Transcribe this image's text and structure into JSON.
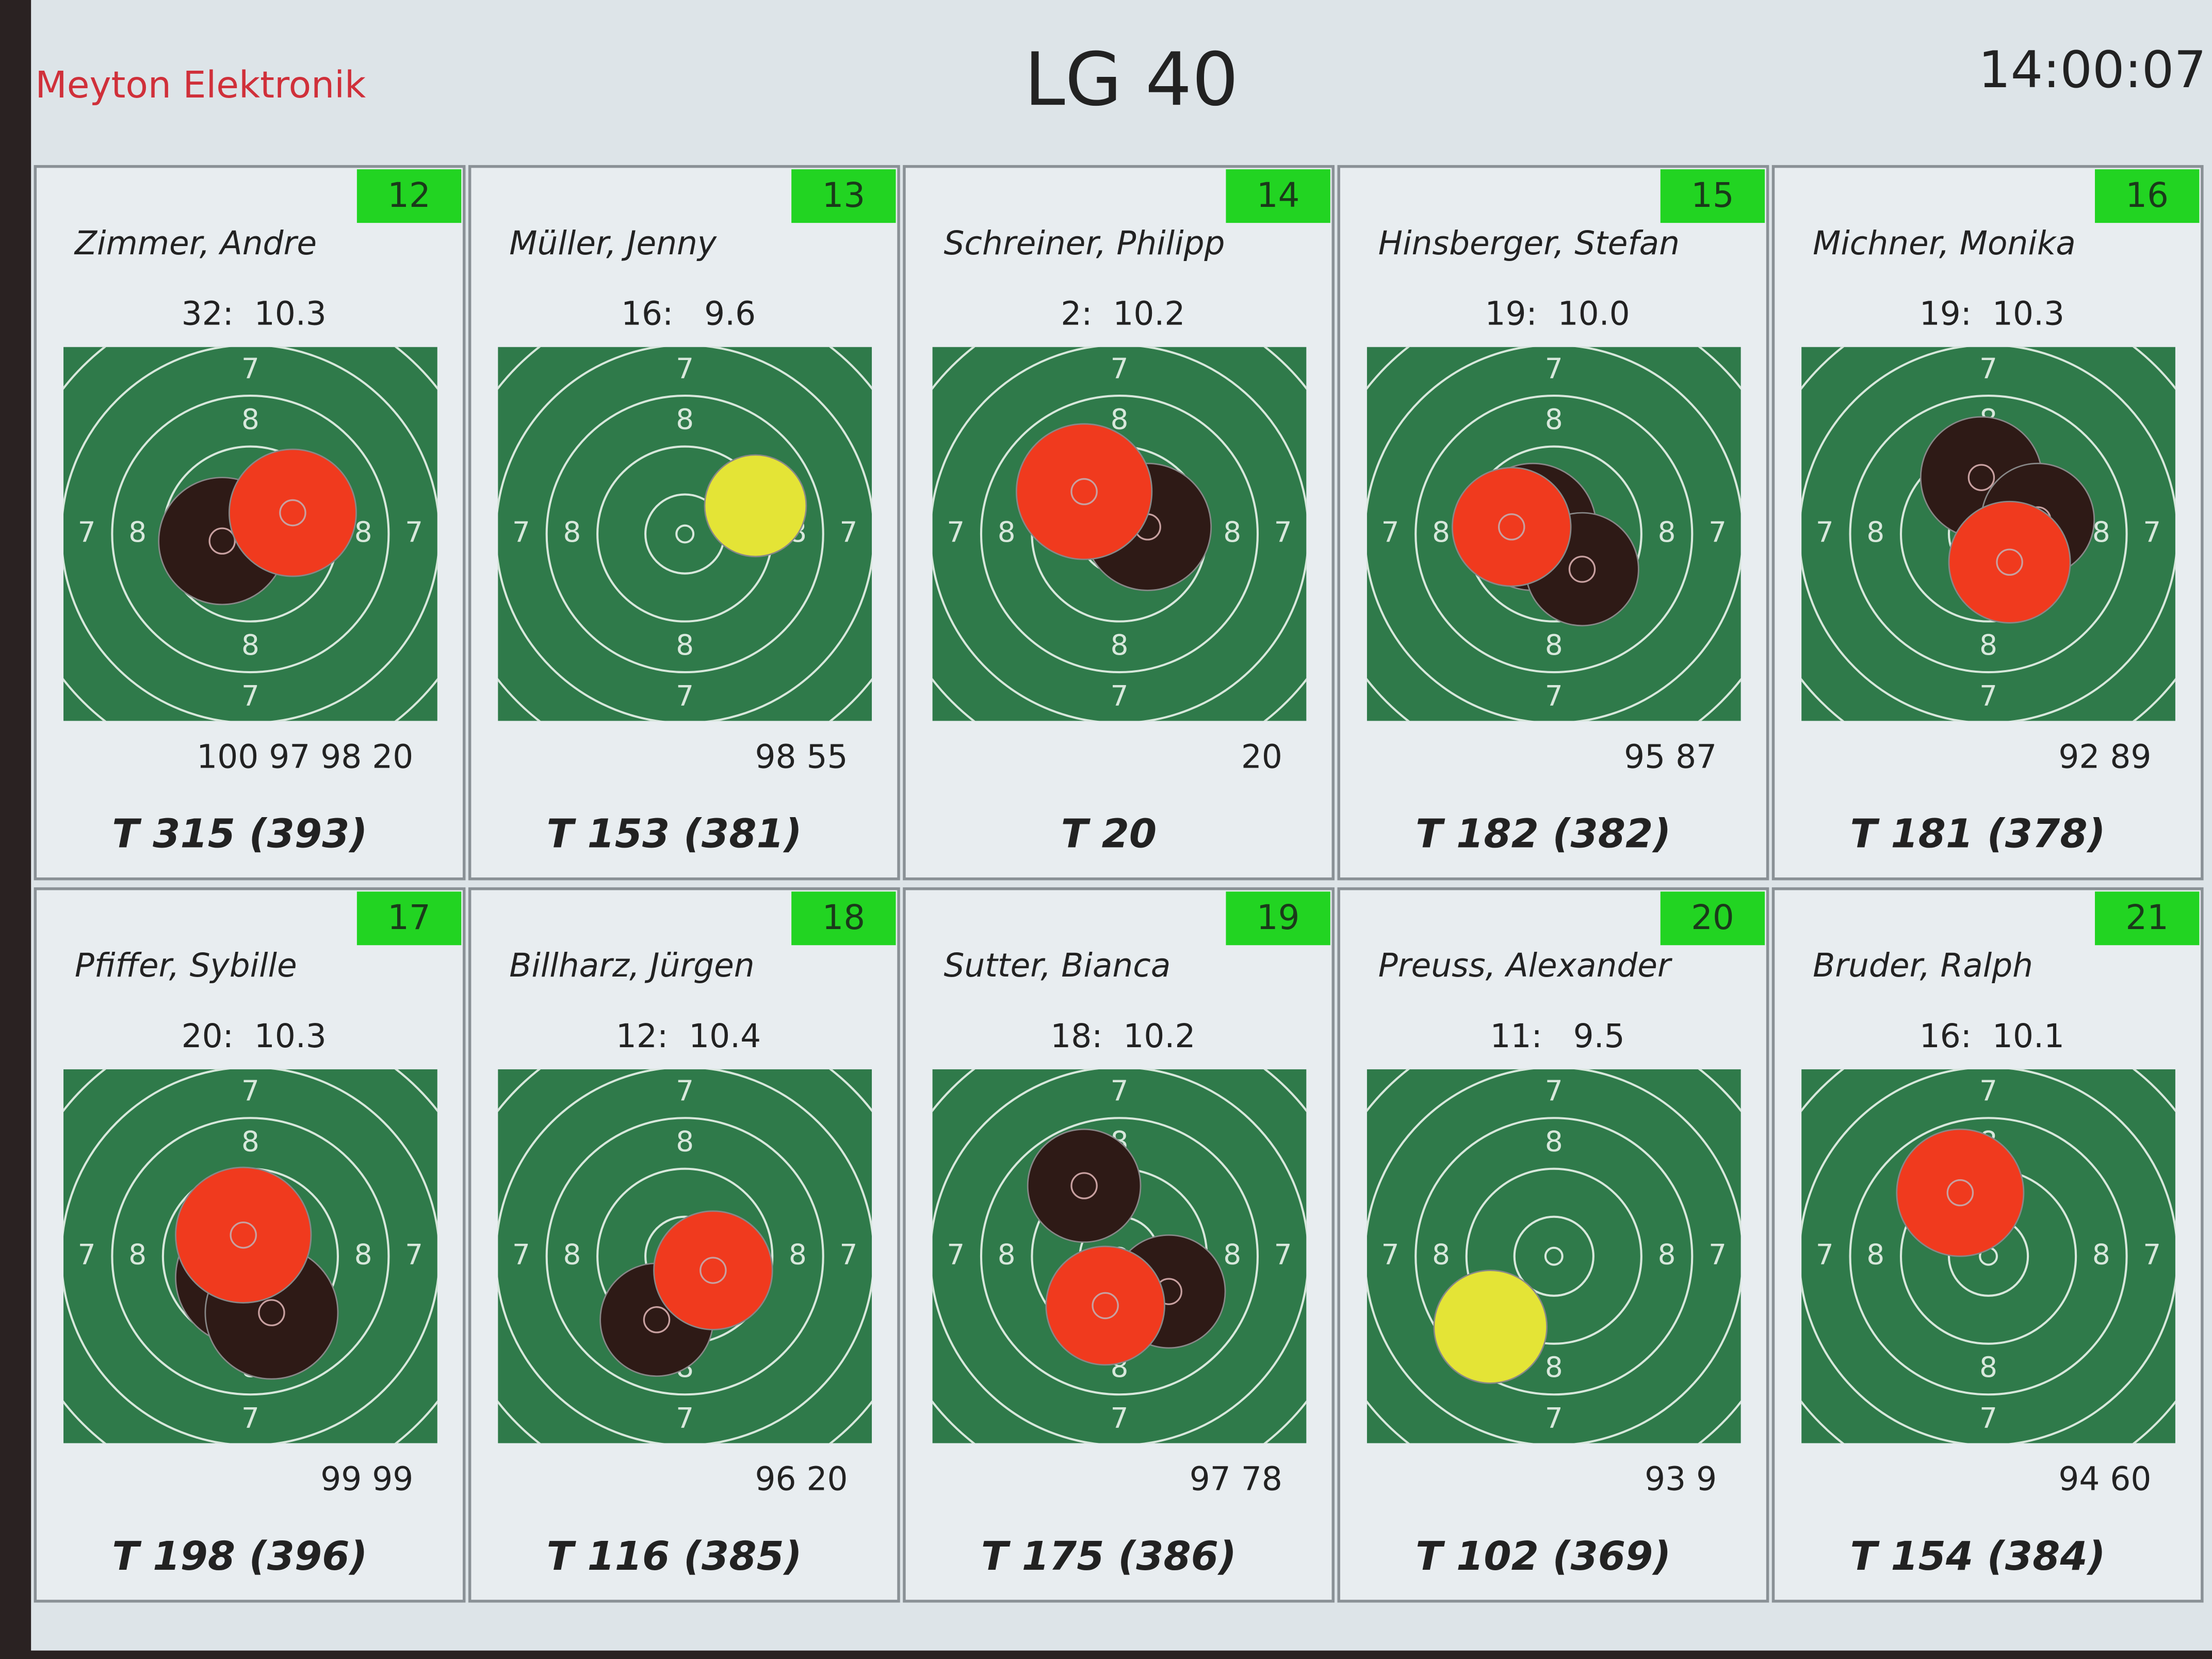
{
  "header": {
    "brand": "Meyton Elektronik",
    "title": "LG 40",
    "time": "14:00:07"
  },
  "ring_labels": [
    "7",
    "8"
  ],
  "lanes": [
    {
      "lane": "12",
      "name": "Zimmer, Andre",
      "last_shot": "32:  10.3",
      "series": [
        100,
        97,
        98,
        20
      ],
      "total": "T 315 (393)"
    },
    {
      "lane": "13",
      "name": "Müller, Jenny",
      "last_shot": "16:   9.6",
      "series": [
        98,
        55
      ],
      "total": "T 153 (381)"
    },
    {
      "lane": "14",
      "name": "Schreiner, Philipp",
      "last_shot": "2:  10.2",
      "series": [
        20
      ],
      "total": "T 20"
    },
    {
      "lane": "15",
      "name": "Hinsberger, Stefan",
      "last_shot": "19:  10.0",
      "series": [
        95,
        87
      ],
      "total": "T 182 (382)"
    },
    {
      "lane": "16",
      "name": "Michner, Monika",
      "last_shot": "19:  10.3",
      "series": [
        92,
        89
      ],
      "total": "T 181 (378)"
    },
    {
      "lane": "17",
      "name": "Pfiffer, Sybille",
      "last_shot": "20:  10.3",
      "series": [
        99,
        99
      ],
      "total": "T 198 (396)"
    },
    {
      "lane": "18",
      "name": "Billharz, Jürgen",
      "last_shot": "12:  10.4",
      "series": [
        96,
        20
      ],
      "total": "T 116 (385)"
    },
    {
      "lane": "19",
      "name": "Sutter, Bianca",
      "last_shot": "18:  10.2",
      "series": [
        97,
        78
      ],
      "total": "T 175 (386)"
    },
    {
      "lane": "20",
      "name": "Preuss, Alexander",
      "last_shot": "11:   9.5",
      "series": [
        93,
        9
      ],
      "total": "T 102 (369)"
    },
    {
      "lane": "21",
      "name": "Bruder, Ralph",
      "last_shot": "16:  10.1",
      "series": [
        94,
        60
      ],
      "total": "T 154 (384)"
    }
  ]
}
